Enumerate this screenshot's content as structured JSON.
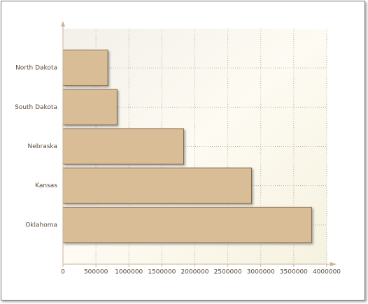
{
  "chart_data": {
    "type": "bar",
    "orientation": "horizontal",
    "categories": [
      "North Dakota",
      "South Dakota",
      "Nebraska",
      "Kansas",
      "Oklahoma"
    ],
    "values": [
      680000,
      820000,
      1830000,
      2860000,
      3770000
    ],
    "color": "#d9bd96",
    "xlim": [
      0,
      4000000
    ],
    "xticks": [
      0,
      500000,
      1000000,
      1500000,
      2000000,
      2500000,
      3000000,
      3500000,
      4000000
    ],
    "grid": true
  }
}
